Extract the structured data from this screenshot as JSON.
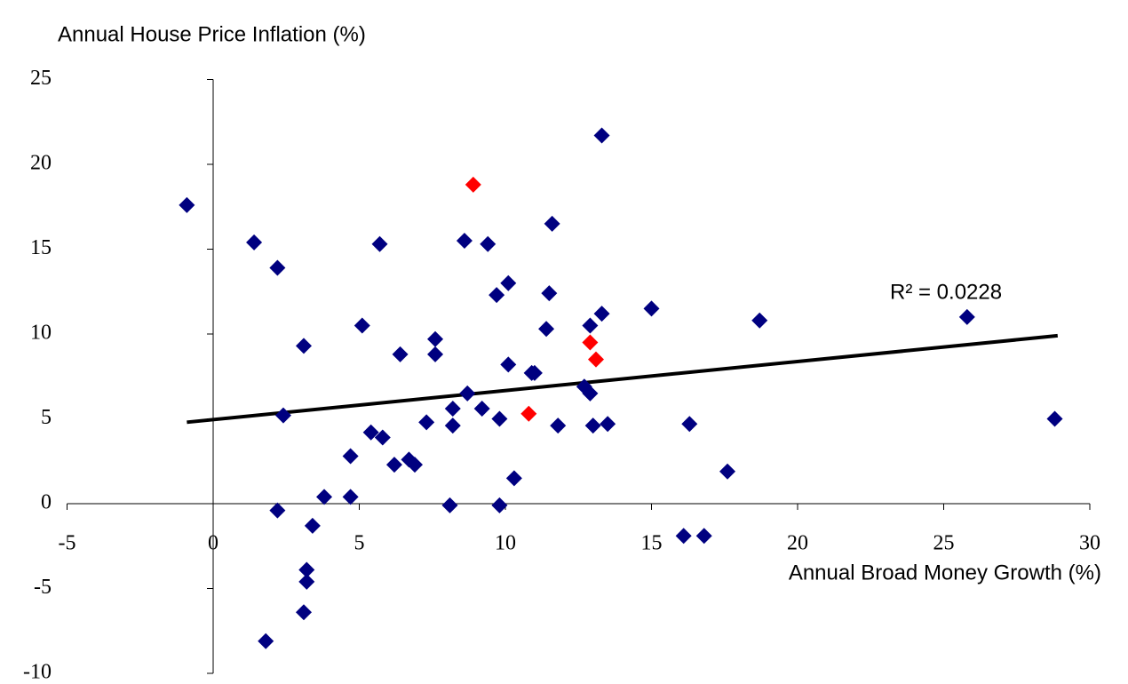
{
  "chart_data": {
    "type": "scatter",
    "xlabel": "Annual Broad Money Growth (%)",
    "ylabel": "Annual House Price Inflation (%)",
    "xlim": [
      -5,
      30
    ],
    "xticks": [
      -5,
      0,
      5,
      10,
      15,
      20,
      25,
      30
    ],
    "ylim": [
      -10,
      25
    ],
    "yticks": [
      -10,
      -5,
      0,
      5,
      10,
      15,
      20,
      25
    ],
    "series": [
      {
        "color": "#000080",
        "x": [
          -0.9,
          1.4,
          2.2,
          3.1,
          2.4,
          2.2,
          3.4,
          3.2,
          3.2,
          3.1,
          1.8,
          3.8,
          4.7,
          4.7,
          5.1,
          5.4,
          5.8,
          5.7,
          6.4,
          6.2,
          6.7,
          6.9,
          7.3,
          7.6,
          7.6,
          8.1,
          8.2,
          8.2,
          8.6,
          8.7,
          9.2,
          9.4,
          9.7,
          10.1,
          10.1,
          9.8,
          9.8,
          10.3,
          10.9,
          11.0,
          11.4,
          11.5,
          11.6,
          11.8,
          12.7,
          12.9,
          12.9,
          13.0,
          13.3,
          13.3,
          13.5,
          15.0,
          16.3,
          16.1,
          16.8,
          17.6,
          18.7,
          25.8,
          28.8
        ],
        "y": [
          17.6,
          15.4,
          13.9,
          9.3,
          5.2,
          -0.4,
          -1.3,
          -3.9,
          -4.6,
          -6.4,
          -8.1,
          0.4,
          0.4,
          2.8,
          10.5,
          4.2,
          3.9,
          15.3,
          8.8,
          2.3,
          2.6,
          2.3,
          4.8,
          9.7,
          8.8,
          -0.1,
          4.6,
          5.6,
          15.5,
          6.5,
          5.6,
          15.3,
          12.3,
          13.0,
          8.2,
          5.0,
          -0.1,
          1.5,
          7.7,
          7.7,
          10.3,
          12.4,
          16.5,
          4.6,
          6.9,
          6.5,
          10.5,
          4.6,
          11.2,
          21.7,
          4.7,
          11.5,
          4.7,
          -1.9,
          -1.9,
          1.9,
          10.8,
          11.0,
          5.0
        ]
      },
      {
        "color": "#ff0000",
        "x": [
          8.9,
          12.9,
          13.1,
          10.8
        ],
        "y": [
          18.8,
          9.5,
          8.5,
          5.3
        ]
      }
    ],
    "trendline": {
      "color": "#000000",
      "x": [
        -0.9,
        28.9
      ],
      "y": [
        4.8,
        9.9
      ]
    },
    "annotation": "R² = 0.0228"
  }
}
